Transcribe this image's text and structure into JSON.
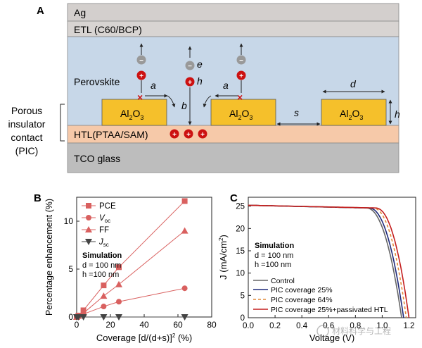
{
  "panelA": {
    "label": "A",
    "layers": {
      "ag": "Ag",
      "etl": "ETL (C60/BCP)",
      "perovskite": "Perovskite",
      "htl": "HTL(PTAA/SAM)",
      "tco": "TCO glass"
    },
    "insulator": {
      "al": "Al",
      "sub2": "2",
      "o": "O",
      "sub3": "3"
    },
    "dims": {
      "a": "a",
      "b": "b",
      "s": "s",
      "d": "d",
      "h": "h"
    },
    "carriers": {
      "e": "e",
      "h": "h",
      "minus": "−",
      "plus": "+"
    },
    "pic_label": [
      "Porous",
      "insulator",
      "contact",
      "(PIC)"
    ],
    "colors": {
      "ag": "#d3cfcd",
      "etl": "#d8d4d2",
      "perovskite": "#c7d7e8",
      "htl": "#f6c9a9",
      "tco": "#bdbdbd",
      "insulator": "#f5c02b",
      "electron": "#999999",
      "hole": "#cc1111"
    }
  },
  "chart_data": [
    {
      "panel": "B",
      "type": "line",
      "xlabel_text": "Coverage [d/(d+s)]",
      "xlabel_sup": "2",
      "xlabel_unit": "(%)",
      "ylabel": "Percentage enhancement (%)",
      "xlim": [
        0,
        80
      ],
      "ylim": [
        0,
        12.5
      ],
      "xticks": [
        0,
        20,
        40,
        60,
        80
      ],
      "yticks": [
        0,
        5,
        10
      ],
      "x": [
        0,
        1,
        4,
        16,
        25,
        64
      ],
      "series": [
        {
          "name": "PCE",
          "name_sub": "",
          "marker": "square",
          "color": "#d9605f",
          "values": [
            0,
            0.15,
            0.7,
            3.3,
            5.2,
            12.1
          ]
        },
        {
          "name": "V",
          "name_sub": "oc",
          "marker": "circle",
          "color": "#d9605f",
          "values": [
            0,
            0.1,
            0.3,
            1.1,
            1.6,
            3.0
          ]
        },
        {
          "name": "FF",
          "name_sub": "",
          "marker": "triangle",
          "color": "#d9605f",
          "values": [
            0,
            0.1,
            0.4,
            2.2,
            3.4,
            9.0
          ]
        },
        {
          "name": "J",
          "name_sub": "sc",
          "marker": "tri-down",
          "color": "#444444",
          "values": [
            0,
            0,
            0,
            0,
            0,
            0
          ]
        }
      ],
      "note": {
        "title": "Simulation",
        "d": "d = 100 nm",
        "h": "h =100 nm"
      }
    },
    {
      "panel": "C",
      "type": "line",
      "xlabel": "Voltage (V)",
      "ylabel_main": "J (mA/cm",
      "ylabel_sup": "2",
      "ylabel_end": ")",
      "xlim": [
        0,
        1.25
      ],
      "ylim": [
        0,
        27
      ],
      "xticks": [
        0.0,
        0.2,
        0.4,
        0.6,
        0.8,
        1.0,
        1.2
      ],
      "yticks": [
        0,
        5,
        10,
        15,
        20,
        25
      ],
      "jsc": 25.2,
      "series": [
        {
          "name": "Control",
          "color": "#666666",
          "dash": "",
          "voc": 1.145,
          "knee": 0.88
        },
        {
          "name": "PIC coverage 25%",
          "color": "#1f2a7a",
          "dash": "",
          "voc": 1.16,
          "knee": 0.9
        },
        {
          "name": "PIC coverage 64%",
          "color": "#e08a3a",
          "dash": "4,3",
          "voc": 1.18,
          "knee": 0.93
        },
        {
          "name": "PIC coverage 25%+passivated HTL",
          "color": "#c41e1e",
          "dash": "",
          "voc": 1.2,
          "knee": 0.95
        }
      ],
      "note": {
        "title": "Simulation",
        "d": "d = 100 nm",
        "h": "h =100 nm"
      }
    }
  ],
  "watermark": "材料科学与工程"
}
